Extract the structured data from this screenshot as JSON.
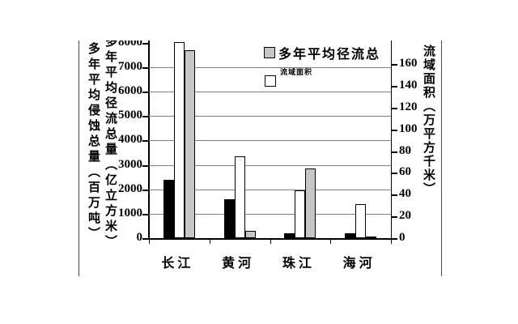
{
  "chart_data": {
    "type": "bar",
    "title": "",
    "categories": [
      "长江",
      "黄河",
      "珠江",
      "海河"
    ],
    "series": [
      {
        "name": "多年平均侵蚀总量",
        "unit": "百万吨",
        "axis": "left",
        "swatch": "black",
        "values": [
          2400,
          1600,
          200,
          200
        ]
      },
      {
        "name": "流域面积",
        "unit": "万平方千米",
        "axis": "right",
        "swatch": "white",
        "values": [
          180,
          75,
          44,
          31
        ]
      },
      {
        "name": "多年平均径流总量",
        "unit": "亿立方米",
        "axis": "left",
        "swatch": "gray",
        "values": [
          7700,
          300,
          2850,
          70
        ]
      }
    ],
    "left_axis": {
      "labels": [
        "多年平均侵蚀总量（百万吨）",
        "多年平均径流总量（亿立方米）"
      ],
      "min": 0,
      "max": 8000,
      "step": 1000,
      "ticks": [
        8000,
        7000,
        6000,
        5000,
        4000,
        3000,
        2000,
        1000,
        0
      ]
    },
    "right_axis": {
      "label": "流域面积（万平方千米）",
      "min": 0,
      "max": 180,
      "step": 20,
      "ticks": [
        160,
        140,
        120,
        100,
        80,
        60,
        40,
        20,
        0
      ]
    },
    "legend": {
      "position": "top-center",
      "items": [
        {
          "label": "多年平均径流总",
          "swatch": "gray"
        },
        {
          "label": "流域面积",
          "swatch": "white"
        }
      ]
    },
    "grid": true,
    "colors": {
      "black_bar": "#000000",
      "gray_bar": "#c6c6c6",
      "white_bar": "#ffffff",
      "gridline": "#808080",
      "axis": "#000000"
    }
  }
}
